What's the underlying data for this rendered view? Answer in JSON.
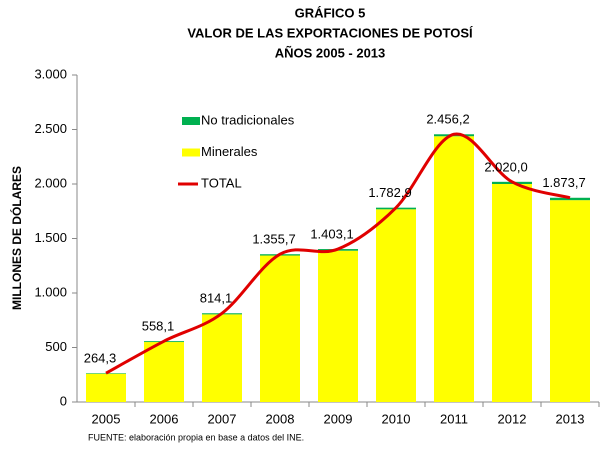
{
  "chart_data": {
    "type": "bar",
    "stacked": true,
    "title_lines": [
      "GRÁFICO 5",
      "VALOR DE LAS EXPORTACIONES DE POTOSÍ",
      "AÑOS 2005 - 2013"
    ],
    "ylabel": "MILLONES DE DÓLARES",
    "source": "FUENTE: elaboración propia en base a datos del INE.",
    "categories": [
      "2005",
      "2006",
      "2007",
      "2008",
      "2009",
      "2010",
      "2011",
      "2012",
      "2013"
    ],
    "series": [
      {
        "name": "No tradicionales",
        "color": "#00b050",
        "values": [
          5,
          8,
          10,
          12,
          15,
          15,
          18,
          20,
          22
        ]
      },
      {
        "name": "Minerales",
        "color": "#ffff00",
        "values": [
          259.3,
          550.1,
          804.1,
          1343.7,
          1388.1,
          1767.9,
          2438.2,
          2000.0,
          1851.7
        ]
      },
      {
        "name": "TOTAL",
        "type": "line",
        "color": "#e00000",
        "values": [
          264.3,
          558.1,
          814.1,
          1355.7,
          1403.1,
          1782.9,
          2456.2,
          2020.0,
          1873.7
        ],
        "value_labels": [
          "264,3",
          "558,1",
          "814,1",
          "1.355,7",
          "1.403,1",
          "1.782,9",
          "2.456,2",
          "2.020,0",
          "1.873,7"
        ]
      }
    ],
    "ylim": [
      0,
      3000
    ],
    "yticks": [
      0,
      500,
      {
        "value": 1000,
        "label": "1.000"
      },
      {
        "value": 1500,
        "label": "1.500"
      },
      {
        "value": 2000,
        "label": "2.000"
      },
      {
        "value": 2500,
        "label": "2.500"
      },
      {
        "value": 3000,
        "label": "3.000"
      }
    ],
    "legend": "top-left"
  }
}
